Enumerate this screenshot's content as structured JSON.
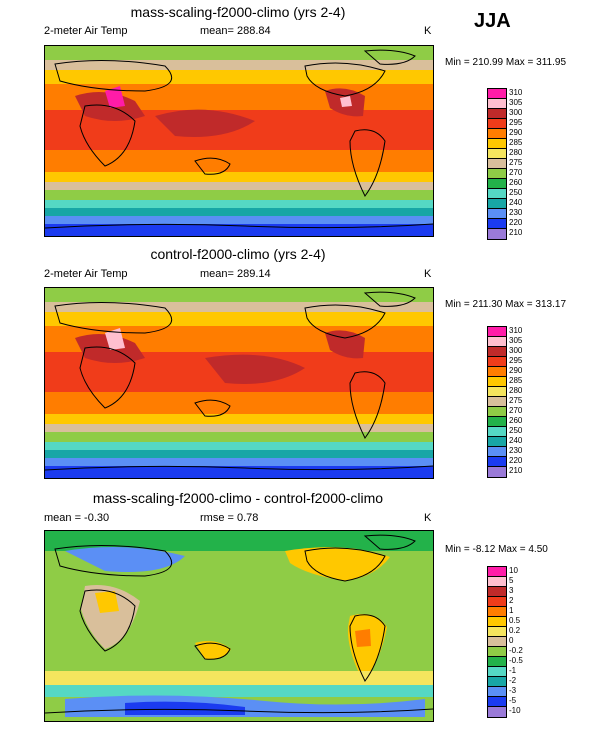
{
  "season": "JJA",
  "panels": [
    {
      "title": "mass-scaling-f2000-climo (yrs 2-4)",
      "left_label": "2-meter Air Temp",
      "mean_text": "mean= 288.84",
      "unit": "K",
      "minmax": "Min = 210.99 Max = 311.95"
    },
    {
      "title": "control-f2000-climo (yrs 2-4)",
      "left_label": "2-meter Air Temp",
      "mean_text": "mean= 289.14",
      "unit": "K",
      "minmax": "Min = 211.30 Max = 313.17"
    },
    {
      "title": "mass-scaling-f2000-climo - control-f2000-climo",
      "left_label": "mean =  -0.30",
      "mean_text": "rmse =   0.78",
      "unit": "K",
      "minmax": "Min =  -8.12 Max =   4.50"
    }
  ],
  "chart_data": [
    {
      "type": "heatmap",
      "title": "mass-scaling-f2000-climo (yrs 2-4)",
      "variable": "2-meter Air Temp",
      "unit": "K",
      "mean": 288.84,
      "min": 210.99,
      "max": 311.95,
      "colorbar_levels": [
        "310",
        "305",
        "300",
        "295",
        "290",
        "285",
        "280",
        "275",
        "270",
        "260",
        "250",
        "240",
        "230",
        "220",
        "210"
      ],
      "colorbar_colors": [
        "#ff1ca8",
        "#ffbfcf",
        "#c02a2a",
        "#f03c1a",
        "#ff7d00",
        "#ffc800",
        "#f5e55e",
        "#d9bf9b",
        "#8fcc46",
        "#23b24a",
        "#55d8c4",
        "#18a6a6",
        "#5b8ff5",
        "#1b3bf0",
        "#0000b0",
        "#9a7ad8"
      ]
    },
    {
      "type": "heatmap",
      "title": "control-f2000-climo (yrs 2-4)",
      "variable": "2-meter Air Temp",
      "unit": "K",
      "mean": 289.14,
      "min": 211.3,
      "max": 313.17,
      "colorbar_levels": [
        "310",
        "305",
        "300",
        "295",
        "290",
        "285",
        "280",
        "275",
        "270",
        "260",
        "250",
        "240",
        "230",
        "220",
        "210"
      ],
      "colorbar_colors": [
        "#ff1ca8",
        "#ffbfcf",
        "#c02a2a",
        "#f03c1a",
        "#ff7d00",
        "#ffc800",
        "#f5e55e",
        "#d9bf9b",
        "#8fcc46",
        "#23b24a",
        "#55d8c4",
        "#18a6a6",
        "#5b8ff5",
        "#1b3bf0",
        "#0000b0",
        "#9a7ad8"
      ]
    },
    {
      "type": "heatmap",
      "title": "mass-scaling-f2000-climo - control-f2000-climo",
      "unit": "K",
      "mean": -0.3,
      "rmse": 0.78,
      "min": -8.12,
      "max": 4.5,
      "colorbar_levels": [
        "10",
        "5",
        "3",
        "2",
        "1",
        "0.5",
        "0.2",
        "0",
        "-0.2",
        "-0.5",
        "-1",
        "-2",
        "-3",
        "-5",
        "-10"
      ],
      "colorbar_colors": [
        "#ff1ca8",
        "#ffbfcf",
        "#c02a2a",
        "#f03c1a",
        "#ff7d00",
        "#ffc800",
        "#f5e55e",
        "#d9bf9b",
        "#8fcc46",
        "#23b24a",
        "#55d8c4",
        "#18a6a6",
        "#5b8ff5",
        "#1b3bf0",
        "#0000b0",
        "#9a7ad8"
      ]
    }
  ]
}
